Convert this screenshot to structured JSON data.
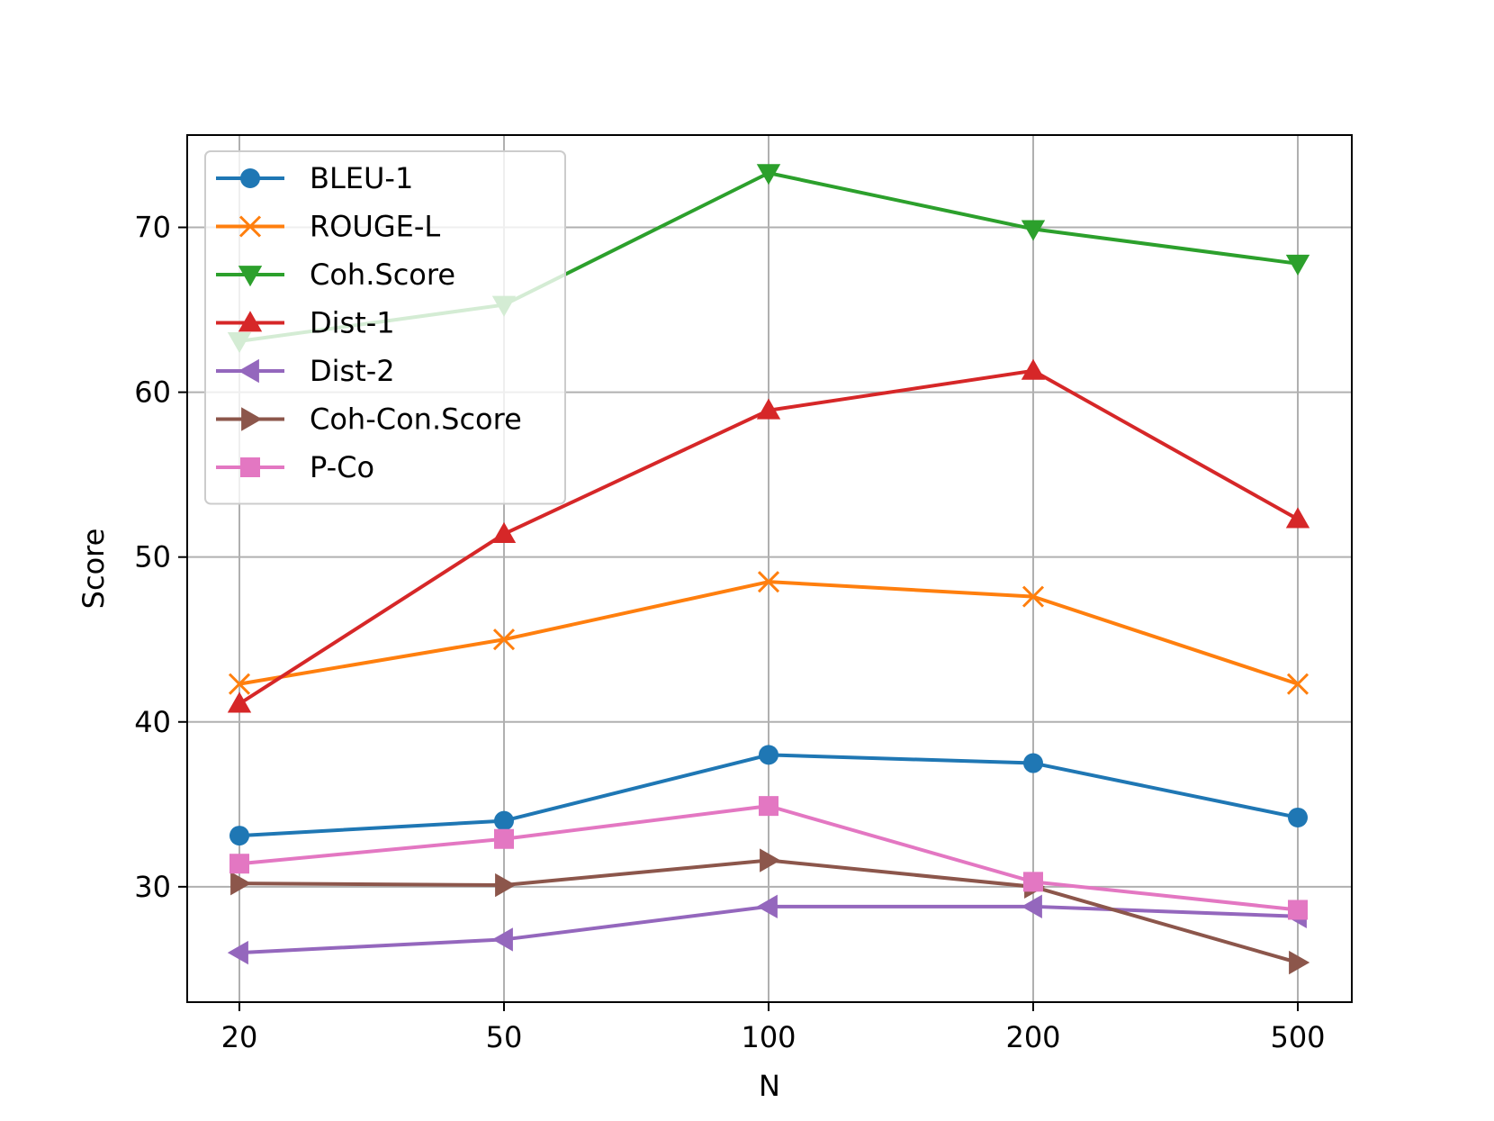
{
  "chart_data": {
    "type": "line",
    "xlabel": "N",
    "ylabel": "Score",
    "categories": [
      "20",
      "50",
      "100",
      "200",
      "500"
    ],
    "yticks": [
      30,
      40,
      50,
      60,
      70
    ],
    "ylim": [
      23,
      75.6
    ],
    "grid": true,
    "legend_position": "top-left",
    "series": [
      {
        "name": "BLEU-1",
        "color": "#1f77b4",
        "marker": "circle",
        "values": [
          33.1,
          34.0,
          38.0,
          37.5,
          34.2
        ]
      },
      {
        "name": "ROUGE-L",
        "color": "#ff7f0e",
        "marker": "x",
        "values": [
          42.3,
          45.0,
          48.5,
          47.6,
          42.3
        ]
      },
      {
        "name": "Coh.Score",
        "color": "#2ca02c",
        "marker": "triangle-down",
        "values": [
          63.1,
          65.3,
          73.3,
          69.9,
          67.8
        ]
      },
      {
        "name": "Dist-1",
        "color": "#d62728",
        "marker": "triangle-up",
        "values": [
          41.1,
          51.4,
          58.9,
          61.3,
          52.3
        ]
      },
      {
        "name": "Dist-2",
        "color": "#9467bd",
        "marker": "triangle-left",
        "values": [
          26.0,
          26.8,
          28.8,
          28.8,
          28.2
        ]
      },
      {
        "name": "Coh-Con.Score",
        "color": "#8c564b",
        "marker": "triangle-right",
        "values": [
          30.2,
          30.1,
          31.6,
          30.0,
          25.4
        ]
      },
      {
        "name": "P-Co",
        "color": "#e377c2",
        "marker": "square",
        "values": [
          31.4,
          32.9,
          34.9,
          30.3,
          28.6
        ]
      }
    ]
  }
}
